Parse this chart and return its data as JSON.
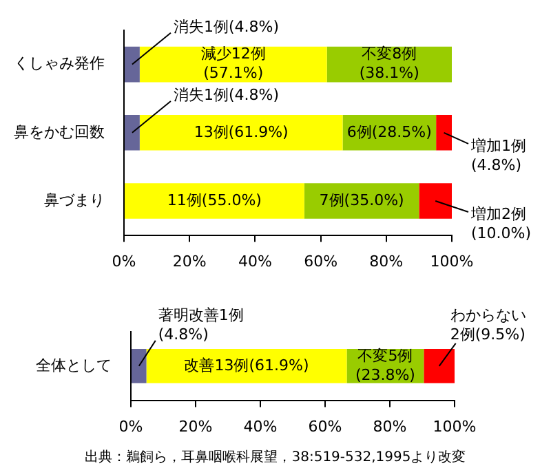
{
  "chart_data": [
    {
      "type": "bar",
      "orientation": "horizontal",
      "stacked": true,
      "grid": false,
      "legend": false,
      "categories": [
        "くしゃみ発作",
        "鼻をかむ回数",
        "鼻づまり"
      ],
      "xlim": [
        0,
        100
      ],
      "xticks": [
        {
          "value": 0,
          "label": "0%"
        },
        {
          "value": 20,
          "label": "20%"
        },
        {
          "value": 40,
          "label": "40%"
        },
        {
          "value": 60,
          "label": "60%"
        },
        {
          "value": 80,
          "label": "80%"
        },
        {
          "value": 100,
          "label": "100%"
        }
      ],
      "series": [
        {
          "color": "#666699",
          "values": [
            4.8,
            4.8,
            null
          ],
          "value_labels": [
            "消失1例(4.8%)",
            "消失1例(4.8%)",
            null
          ]
        },
        {
          "color": "#ffff00",
          "values": [
            57.1,
            61.9,
            55.0
          ],
          "value_labels": [
            "減少12例\n(57.1%)",
            "13例(61.9%)",
            "11例(55.0%)"
          ]
        },
        {
          "color": "#99cc00",
          "values": [
            38.1,
            28.5,
            35.0
          ],
          "value_labels": [
            "不変8例\n(38.1%)",
            "6例(28.5%)",
            "7例(35.0%)"
          ]
        },
        {
          "color": "#ff0000",
          "values": [
            null,
            4.8,
            10.0
          ],
          "value_labels": [
            null,
            "増加1例\n(4.8%)",
            "増加2例\n(10.0%)"
          ]
        }
      ]
    },
    {
      "type": "bar",
      "orientation": "horizontal",
      "stacked": true,
      "grid": false,
      "legend": false,
      "categories": [
        "全体として"
      ],
      "xlim": [
        0,
        100
      ],
      "xticks": [
        {
          "value": 0,
          "label": "0%"
        },
        {
          "value": 20,
          "label": "20%"
        },
        {
          "value": 40,
          "label": "40%"
        },
        {
          "value": 60,
          "label": "60%"
        },
        {
          "value": 80,
          "label": "80%"
        },
        {
          "value": 100,
          "label": "100%"
        }
      ],
      "series": [
        {
          "color": "#666699",
          "values": [
            4.8
          ],
          "value_labels": [
            "著明改善1例\n(4.8%)"
          ]
        },
        {
          "color": "#ffff00",
          "values": [
            61.9
          ],
          "value_labels": [
            "改善13例(61.9%)"
          ]
        },
        {
          "color": "#99cc00",
          "values": [
            23.8
          ],
          "value_labels": [
            "不変5例\n(23.8%)"
          ]
        },
        {
          "color": "#ff0000",
          "values": [
            9.5
          ],
          "value_labels": [
            "わからない\n2例(9.5%)"
          ]
        }
      ],
      "annotations": [
        "出典：鵜飼ら，耳鼻咽喉科展望，38:519-532,1995より改変"
      ]
    }
  ]
}
